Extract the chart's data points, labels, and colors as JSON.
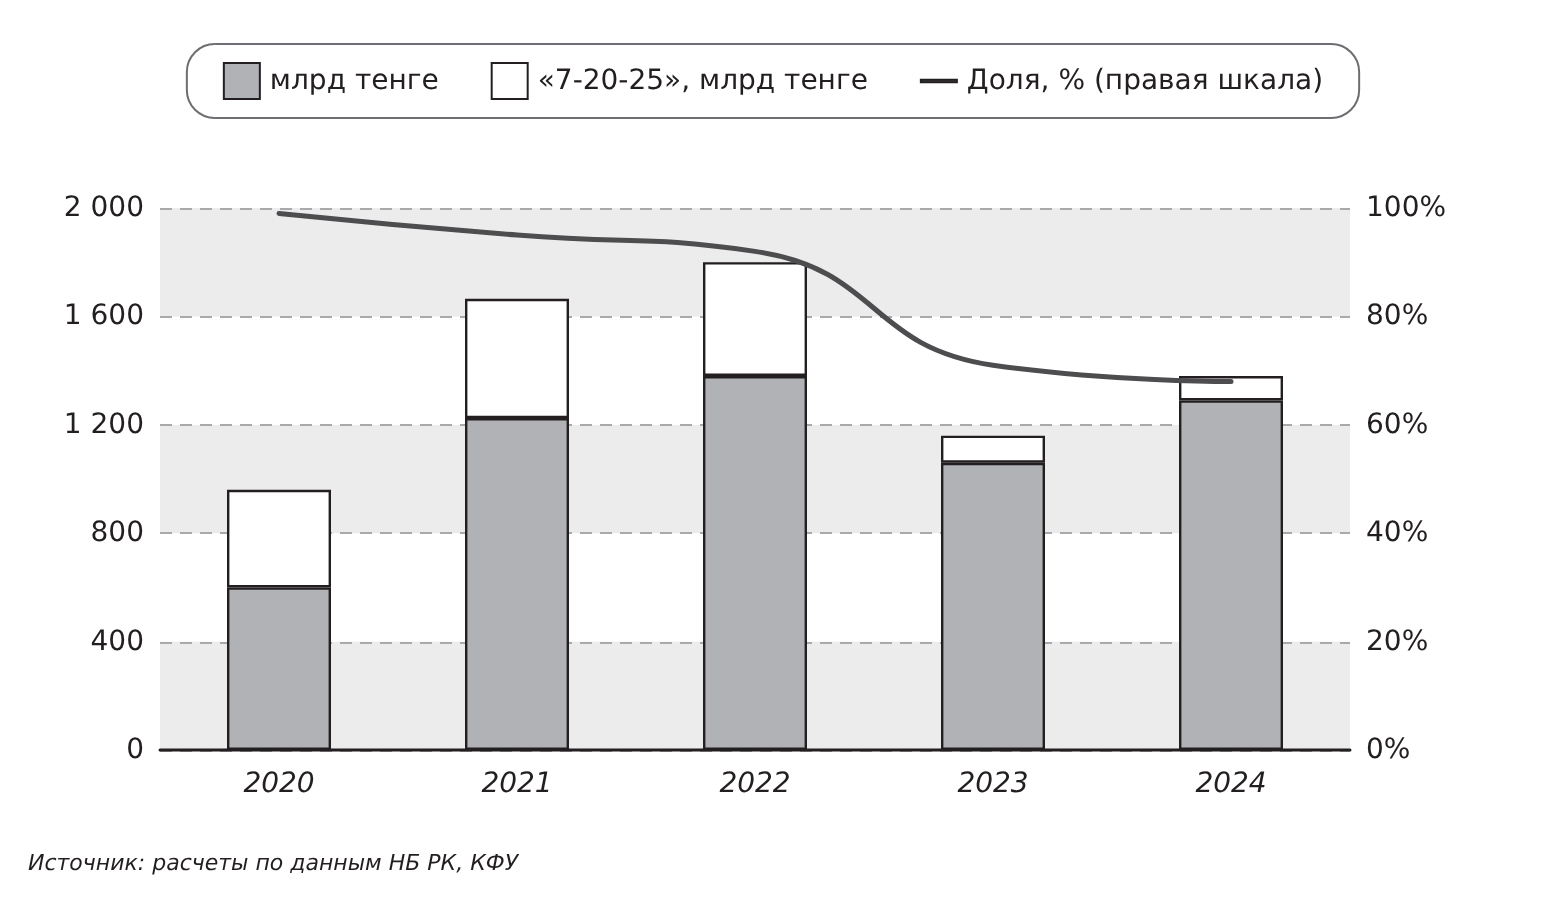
{
  "chart_data": {
    "type": "bar",
    "stacked": true,
    "categories": [
      "2020",
      "2021",
      "2022",
      "2023",
      "2024"
    ],
    "series": [
      {
        "name": "млрд тенге",
        "color": "#b1b2b6",
        "values": [
          600,
          1225,
          1380,
          1060,
          1290
        ]
      },
      {
        "name": "«7-20-25», млрд тенге",
        "color": "#ffffff",
        "values": [
          360,
          440,
          420,
          100,
          90
        ]
      },
      {
        "name": "Доля, % (правая шкала)",
        "type": "line",
        "axis": "y2",
        "color": "#4d4d4f",
        "values": [
          99,
          95,
          92,
          71,
          68
        ]
      }
    ],
    "ylim": [
      0,
      2000
    ],
    "yticks": [
      {
        "value": 0,
        "label": "0"
      },
      {
        "value": 400,
        "label": "400"
      },
      {
        "value": 800,
        "label": "800"
      },
      {
        "value": 1200,
        "label": "1 200"
      },
      {
        "value": 1600,
        "label": "1 600"
      },
      {
        "value": 2000,
        "label": "2 000"
      }
    ],
    "y2lim": [
      0,
      100
    ],
    "y2ticks": [
      {
        "value": 0,
        "label": "0%"
      },
      {
        "value": 20,
        "label": "20%"
      },
      {
        "value": 40,
        "label": "40%"
      },
      {
        "value": 60,
        "label": "60%"
      },
      {
        "value": 80,
        "label": "80%"
      },
      {
        "value": 100,
        "label": "100%"
      }
    ],
    "grid": "y",
    "legend": "top",
    "marker": "none",
    "line_style": "solid",
    "annotations": [
      "Источник: расчеты по данным НБ РК, КФУ"
    ]
  }
}
